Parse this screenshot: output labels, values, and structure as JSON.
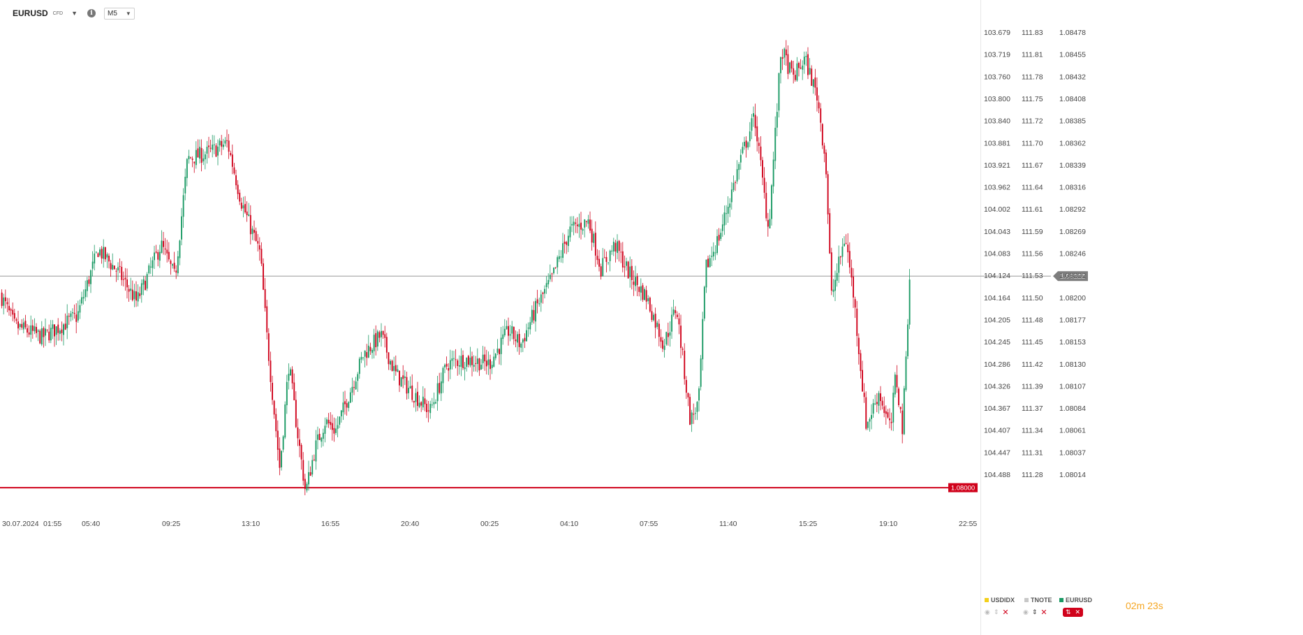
{
  "header": {
    "symbol": "EURUSD",
    "type_badge": "CFD",
    "info_glyph": "i",
    "timeframe": "M5"
  },
  "countdown": {
    "minutes": "02",
    "minutes_unit": "m",
    "seconds": "23",
    "seconds_unit": "s",
    "color": "#f5a623"
  },
  "overlays": [
    {
      "name": "USDIDX",
      "color": "#f3d01b",
      "active": false
    },
    {
      "name": "TNOTE",
      "color": "#c8c8c8",
      "active": false
    },
    {
      "name": "EURUSD",
      "color": "#1a9a64",
      "active": true
    }
  ],
  "icons": {
    "eye": "eye-icon",
    "updown": "up-down-arrows-icon",
    "close": "close-icon",
    "chevron": "chevron-down-icon",
    "info": "info-icon",
    "chart_type": "candles-icon"
  },
  "colors": {
    "bull": "#1a9a64",
    "bear": "#d0021b",
    "level_line": "#d0021b",
    "current_line": "#999999",
    "current_badge": "#7d7d7d"
  },
  "chart_data": {
    "type": "candlestick",
    "symbol": "EURUSD",
    "timeframe": "M5",
    "x_ticks": [
      "30.07.2024",
      "01:55",
      "05:40",
      "09:25",
      "13:10",
      "16:55",
      "20:40",
      "00:25",
      "04:10",
      "07:55",
      "11:40",
      "15:25",
      "19:10",
      "22:55"
    ],
    "y_axes": [
      {
        "series": "USDIDX",
        "ticks": [
          "103.679",
          "103.719",
          "103.760",
          "103.800",
          "103.840",
          "103.881",
          "103.921",
          "103.962",
          "104.002",
          "104.043",
          "104.083",
          "104.124",
          "104.164",
          "104.205",
          "104.245",
          "104.286",
          "104.326",
          "104.367",
          "104.407",
          "104.447",
          "104.488"
        ]
      },
      {
        "series": "TNOTE",
        "ticks": [
          "111.83",
          "111.81",
          "111.78",
          "111.75",
          "111.72",
          "111.70",
          "111.67",
          "111.64",
          "111.61",
          "111.59",
          "111.56",
          "111.53",
          "111.50",
          "111.48",
          "111.45",
          "111.42",
          "111.39",
          "111.37",
          "111.34",
          "111.31",
          "111.28"
        ]
      },
      {
        "series": "EURUSD",
        "ticks": [
          "1.08478",
          "1.08455",
          "1.08432",
          "1.08408",
          "1.08385",
          "1.08362",
          "1.08339",
          "1.08316",
          "1.08292",
          "1.08269",
          "1.08246",
          "1.08222",
          "1.08200",
          "1.08177",
          "1.08153",
          "1.08130",
          "1.08107",
          "1.08084",
          "1.08061",
          "1.08037",
          "1.08014"
        ]
      }
    ],
    "y_range": [
      1.07988,
      1.08492
    ],
    "current_price": "1.08222",
    "level_line": {
      "value": "1.08000"
    },
    "price_path": [
      [
        0,
        1.08203
      ],
      [
        20,
        1.0817
      ],
      [
        60,
        1.08158
      ],
      [
        110,
        1.0818
      ],
      [
        140,
        1.0825
      ],
      [
        170,
        1.08225
      ],
      [
        195,
        1.08195
      ],
      [
        230,
        1.08255
      ],
      [
        250,
        1.0822
      ],
      [
        268,
        1.08345
      ],
      [
        300,
        1.08352
      ],
      [
        325,
        1.08362
      ],
      [
        345,
        1.083
      ],
      [
        372,
        1.08245
      ],
      [
        382,
        1.08155
      ],
      [
        392,
        1.0808
      ],
      [
        400,
        1.0802
      ],
      [
        413,
        1.0813
      ],
      [
        425,
        1.0806
      ],
      [
        437,
        1.07995
      ],
      [
        450,
        1.0804
      ],
      [
        465,
        1.0807
      ],
      [
        480,
        1.0806
      ],
      [
        500,
        1.081
      ],
      [
        520,
        1.0814
      ],
      [
        545,
        1.0816
      ],
      [
        565,
        1.0812
      ],
      [
        590,
        1.081
      ],
      [
        615,
        1.0808
      ],
      [
        640,
        1.0813
      ],
      [
        665,
        1.08135
      ],
      [
        700,
        1.0813
      ],
      [
        728,
        1.08165
      ],
      [
        745,
        1.0815
      ],
      [
        768,
        1.0819
      ],
      [
        790,
        1.0822
      ],
      [
        815,
        1.0827
      ],
      [
        842,
        1.0828
      ],
      [
        860,
        1.0823
      ],
      [
        880,
        1.08255
      ],
      [
        900,
        1.08225
      ],
      [
        925,
        1.082
      ],
      [
        950,
        1.0815
      ],
      [
        968,
        1.0819
      ],
      [
        988,
        1.0807
      ],
      [
        1000,
        1.0809
      ],
      [
        1010,
        1.0823
      ],
      [
        1030,
        1.08265
      ],
      [
        1060,
        1.08345
      ],
      [
        1080,
        1.0839
      ],
      [
        1100,
        1.0827
      ],
      [
        1118,
        1.0846
      ],
      [
        1135,
        1.0843
      ],
      [
        1152,
        1.0845
      ],
      [
        1170,
        1.0841
      ],
      [
        1182,
        1.0834
      ],
      [
        1190,
        1.082
      ],
      [
        1210,
        1.08265
      ],
      [
        1222,
        1.082
      ],
      [
        1240,
        1.08065
      ],
      [
        1258,
        1.081
      ],
      [
        1275,
        1.0806
      ],
      [
        1282,
        1.0812
      ],
      [
        1292,
        1.0806
      ],
      [
        1302,
        1.08222
      ]
    ],
    "grid": false,
    "legend": "bottom-right"
  }
}
